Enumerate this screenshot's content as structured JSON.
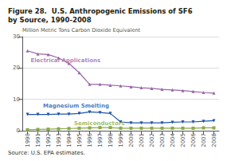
{
  "chart_data": {
    "type": "line",
    "title": "Figure 28.  U.S. Anthropogenic Emissions of SF6\nby Source, 1990-2008",
    "ylabel": "Million Metric Tons Carbon Dioxide Equivalent",
    "source": "Source: U.S. EPA estimates.",
    "x": [
      1990,
      1991,
      1992,
      1993,
      1994,
      1995,
      1996,
      1997,
      1998,
      1999,
      2000,
      2001,
      2002,
      2003,
      2004,
      2005,
      2006,
      2007,
      2008
    ],
    "series": [
      {
        "name": "Electrical Applications",
        "color": "#9966aa",
        "marker": "triangle-up",
        "values": [
          25.5,
          24.5,
          24.3,
          23.2,
          21.5,
          18.5,
          14.8,
          14.8,
          14.5,
          14.3,
          14.0,
          13.7,
          13.5,
          13.2,
          13.0,
          12.8,
          12.5,
          12.2,
          12.0
        ]
      },
      {
        "name": "Magnesium Smelting",
        "color": "#2255aa",
        "marker": "triangle-down",
        "values": [
          5.2,
          5.2,
          5.2,
          5.3,
          5.3,
          5.5,
          6.0,
          5.8,
          5.5,
          2.8,
          2.5,
          2.5,
          2.5,
          2.5,
          2.7,
          2.8,
          2.8,
          3.0,
          3.2
        ]
      },
      {
        "name": "Semiconductors",
        "color": "#88aa44",
        "marker": "square",
        "values": [
          0.3,
          0.4,
          0.5,
          0.6,
          0.7,
          0.8,
          0.9,
          1.0,
          1.0,
          0.8,
          0.8,
          0.8,
          0.8,
          0.8,
          0.8,
          0.8,
          0.8,
          0.9,
          0.9
        ]
      }
    ],
    "annotations": [
      {
        "text": "Electrical Applications",
        "x": 1990.3,
        "y": 22.5,
        "color": "#9966aa"
      },
      {
        "text": "Magnesium Smelting",
        "x": 1991.5,
        "y": 7.8,
        "color": "#2255aa"
      },
      {
        "text": "Semiconductors",
        "x": 1994.5,
        "y": 2.3,
        "color": "#88aa44"
      }
    ],
    "xlim": [
      1989.5,
      2008.5
    ],
    "xticks": [
      1990,
      1991,
      1992,
      1993,
      1994,
      1995,
      1996,
      1997,
      1998,
      1999,
      2000,
      2001,
      2002,
      2003,
      2004,
      2005,
      2006,
      2007,
      2008
    ],
    "ylim": [
      0,
      30
    ],
    "yticks": [
      0,
      10,
      20,
      30
    ],
    "grid": true
  }
}
